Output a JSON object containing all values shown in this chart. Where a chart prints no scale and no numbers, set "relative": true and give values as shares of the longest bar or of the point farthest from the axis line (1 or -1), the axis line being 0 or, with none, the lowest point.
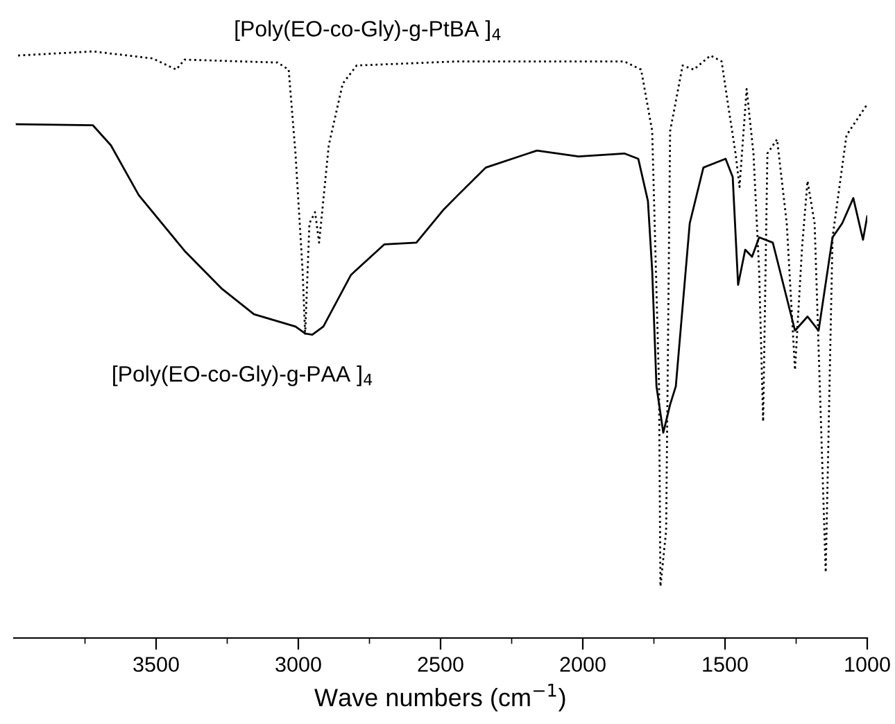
{
  "chart_data": {
    "type": "line",
    "relative": true,
    "xlabel": "Wave numbers (cm$^{−1}$)",
    "xlim": [
      4000,
      1000
    ],
    "xticks": [
      {
        "value": 3750,
        "label": null
      },
      3500,
      {
        "value": 3250,
        "label": null
      },
      3000,
      {
        "value": 2750,
        "label": null
      },
      2500,
      {
        "value": 2250,
        "label": null
      },
      2000,
      {
        "value": 1750,
        "label": null
      },
      1500,
      {
        "value": 1250,
        "label": null
      },
      1000
    ],
    "grid": false,
    "legend": false,
    "tick_labels": "x",
    "series": [
      {
        "name": "[Poly(EO-co-Gly)-g-PtBA ]$_{4}$",
        "color": "#000000",
        "line_style": "dotted",
        "x": [
          3985,
          3722,
          3512,
          3429,
          3400,
          3073,
          3034,
          3010,
          2985,
          2976,
          2961,
          2941,
          2927,
          2893,
          2844,
          2795,
          2439,
          1854,
          1795,
          1756,
          1732,
          1727,
          1707,
          1693,
          1649,
          1610,
          1551,
          1512,
          1488,
          1463,
          1449,
          1424,
          1400,
          1380,
          1366,
          1351,
          1317,
          1283,
          1254,
          1229,
          1210,
          1185,
          1146,
          1122,
          1073,
          1000
        ],
        "values": [
          0.993,
          1.0,
          0.988,
          0.969,
          0.986,
          0.981,
          0.969,
          0.826,
          0.626,
          0.517,
          0.707,
          0.726,
          0.674,
          0.84,
          0.945,
          0.976,
          0.983,
          0.983,
          0.969,
          0.864,
          0.429,
          0.088,
          0.183,
          0.864,
          0.976,
          0.969,
          0.993,
          0.983,
          0.905,
          0.826,
          0.769,
          0.936,
          0.826,
          0.626,
          0.369,
          0.826,
          0.85,
          0.707,
          0.457,
          0.667,
          0.779,
          0.707,
          0.112,
          0.683,
          0.857,
          0.91
        ]
      },
      {
        "name": "[Poly(EO-co-Gly)-g-PAA ]$_{4}$",
        "color": "#000000",
        "line_style": "solid",
        "x": [
          3990,
          3722,
          3659,
          3561,
          3400,
          3268,
          3156,
          3010,
          2976,
          2951,
          2912,
          2815,
          2698,
          2585,
          2488,
          2439,
          2341,
          2161,
          2015,
          1854,
          1805,
          1771,
          1756,
          1741,
          1717,
          1693,
          1673,
          1624,
          1576,
          1498,
          1473,
          1454,
          1429,
          1405,
          1380,
          1332,
          1254,
          1210,
          1171,
          1122,
          1088,
          1049,
          1015,
          1000
        ],
        "values": [
          0.876,
          0.874,
          0.84,
          0.755,
          0.66,
          0.595,
          0.552,
          0.531,
          0.519,
          0.517,
          0.531,
          0.619,
          0.671,
          0.674,
          0.731,
          0.755,
          0.802,
          0.831,
          0.821,
          0.826,
          0.817,
          0.745,
          0.626,
          0.429,
          0.35,
          0.398,
          0.429,
          0.707,
          0.802,
          0.817,
          0.786,
          0.602,
          0.662,
          0.65,
          0.683,
          0.674,
          0.524,
          0.548,
          0.524,
          0.683,
          0.707,
          0.75,
          0.679,
          0.719
        ]
      }
    ]
  }
}
